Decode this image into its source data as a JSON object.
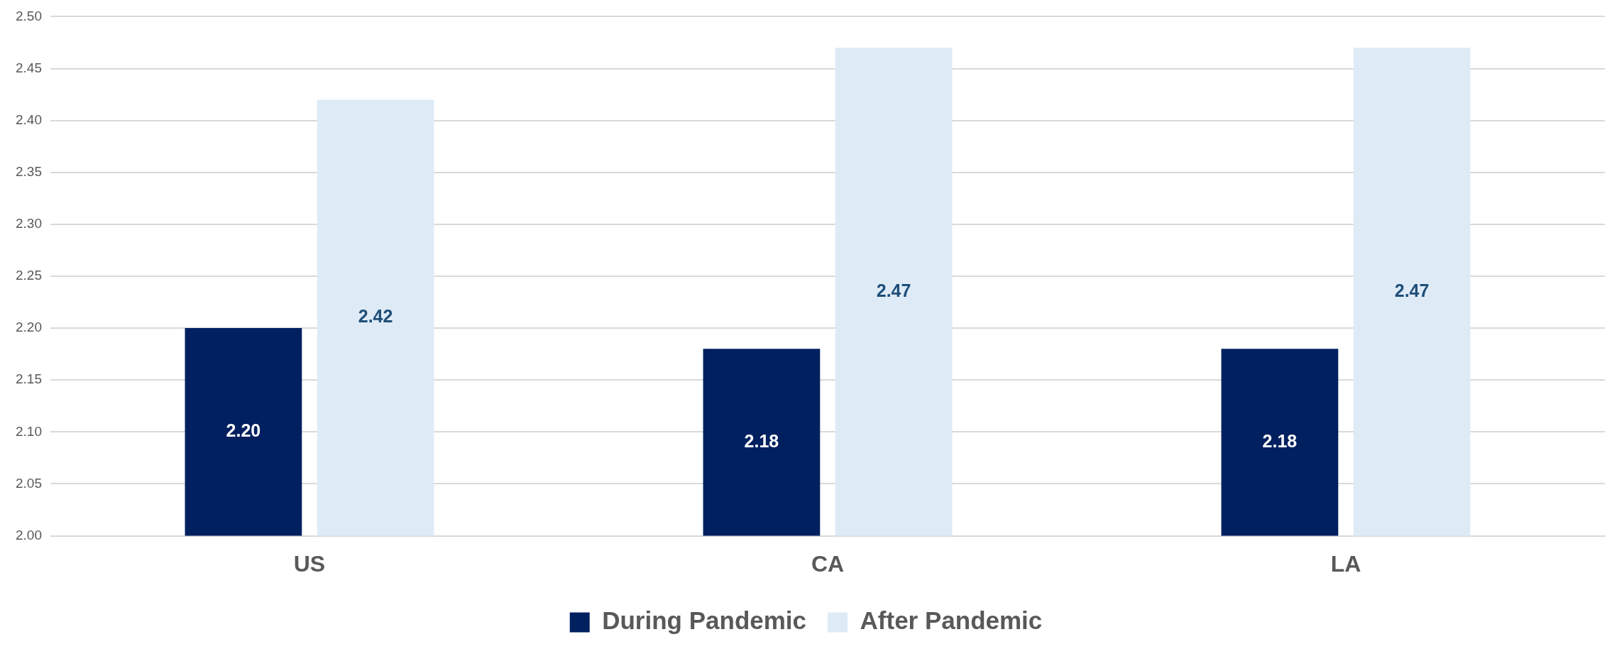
{
  "chart_data": {
    "type": "bar",
    "categories": [
      "US",
      "CA",
      "LA"
    ],
    "series": [
      {
        "name": "During Pandemic",
        "color": "#002060",
        "values": [
          2.2,
          2.18,
          2.18
        ],
        "value_labels": [
          "2.20",
          "2.18",
          "2.18"
        ]
      },
      {
        "name": "After Pandemic",
        "color": "#deebf7",
        "values": [
          2.42,
          2.47,
          2.47
        ],
        "value_labels": [
          "2.42",
          "2.47",
          "2.47"
        ]
      }
    ],
    "ylim": [
      2.0,
      2.5
    ],
    "yticks": [
      {
        "value": 2.0,
        "label": "2.00"
      },
      {
        "value": 2.05,
        "label": "2.05"
      },
      {
        "value": 2.1,
        "label": "2.10"
      },
      {
        "value": 2.15,
        "label": "2.15"
      },
      {
        "value": 2.2,
        "label": "2.20"
      },
      {
        "value": 2.25,
        "label": "2.25"
      },
      {
        "value": 2.3,
        "label": "2.30"
      },
      {
        "value": 2.35,
        "label": "2.35"
      },
      {
        "value": 2.4,
        "label": "2.40"
      },
      {
        "value": 2.45,
        "label": "2.45"
      },
      {
        "value": 2.5,
        "label": "2.50"
      }
    ],
    "grid": "y",
    "legend": "bottom"
  }
}
